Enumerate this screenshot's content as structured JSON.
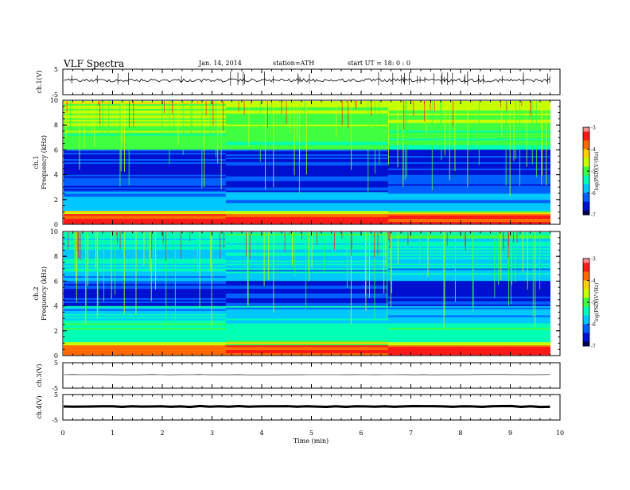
{
  "header": {
    "title": "VLF  Spectra",
    "date": "Jan. 14, 2014",
    "station": "station=ATH",
    "start": "start  UT =   18: 0  : 0"
  },
  "colors": {
    "trace": "#000000",
    "colormap": [
      "#000050",
      "#0010d0",
      "#0060ff",
      "#00c8ff",
      "#00ffb4",
      "#40ff40",
      "#c8ff00",
      "#ffd000",
      "#ff6a00",
      "#ff1a1a",
      "#ff8c8c"
    ]
  },
  "chart_data": [
    {
      "type": "line",
      "id": "ch1",
      "ylabel": "ch.1(V)",
      "ylim": [
        -5,
        5
      ],
      "yticks": [
        "5",
        "-5"
      ],
      "series": [
        {
          "description": "noisy waveform near 0 V",
          "mean": 0.0
        }
      ]
    },
    {
      "type": "heatmap",
      "id": "ch1-spec",
      "ylabel": "ch.1\nFrequency  (kHz)",
      "ylim": [
        0,
        10
      ],
      "yticks": [
        "0",
        "2",
        "4",
        "6",
        "8",
        "10"
      ],
      "colorbar": {
        "label": "log(PSD)(V²/Hz)",
        "range": [
          -7,
          -3
        ],
        "ticks": [
          "-3",
          "-4",
          "-5",
          "-6",
          "-7"
        ]
      }
    },
    {
      "type": "heatmap",
      "id": "ch2-spec",
      "ylabel": "ch.2\nFrequency  (kHz)",
      "ylim": [
        0,
        10
      ],
      "yticks": [
        "0",
        "2",
        "4",
        "6",
        "8",
        "10"
      ],
      "colorbar": {
        "label": "log(PSD)(V²/Hz)",
        "range": [
          -7,
          -3
        ],
        "ticks": [
          "-3",
          "-4",
          "-5",
          "-6",
          "-7"
        ]
      }
    },
    {
      "type": "line",
      "id": "ch3",
      "ylabel": "ch.3(V)",
      "ylim": [
        -5,
        5
      ],
      "yticks": [
        "5",
        "-5"
      ],
      "series": [
        {
          "description": "flat trace near 0 V",
          "mean": 0.0
        }
      ]
    },
    {
      "type": "line",
      "id": "ch4",
      "ylabel": "ch.4(V)",
      "ylim": [
        -5,
        5
      ],
      "yticks": [
        "5",
        "-5"
      ],
      "series": [
        {
          "description": "thick flat trace near 0 V",
          "mean": 0.0
        }
      ]
    }
  ],
  "xaxis": {
    "label": "Time  (min)",
    "range": [
      0,
      10
    ],
    "ticks": [
      "0",
      "1",
      "2",
      "3",
      "4",
      "5",
      "6",
      "7",
      "8",
      "9",
      "10"
    ],
    "data_end": 9.8
  }
}
